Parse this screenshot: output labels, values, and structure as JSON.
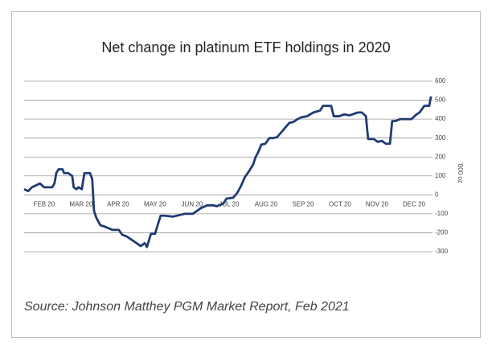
{
  "chart_data": {
    "type": "line",
    "title": "Net change in platinum ETF holdings in 2020",
    "y_axis_label": "'000 oz",
    "source": "Source: Johnson Matthey PGM Market Report, Feb 2021",
    "xlim": [
      1.46,
      12.5
    ],
    "xticks": [
      {
        "value": 2,
        "label": "FEB 20"
      },
      {
        "value": 3,
        "label": "MAR 20"
      },
      {
        "value": 4,
        "label": "APR 20"
      },
      {
        "value": 5,
        "label": "MAY 20"
      },
      {
        "value": 6,
        "label": "JUN 20"
      },
      {
        "value": 7,
        "label": "JUL 20"
      },
      {
        "value": 8,
        "label": "AUG 20"
      },
      {
        "value": 9,
        "label": "SEP 20"
      },
      {
        "value": 10,
        "label": "OCT 20"
      },
      {
        "value": 11,
        "label": "NOV 20"
      },
      {
        "value": 12,
        "label": "DEC 20"
      }
    ],
    "ylim": [
      -300,
      600
    ],
    "yticks": [
      -300,
      -200,
      -100,
      0,
      100,
      200,
      300,
      400,
      500,
      600
    ],
    "grid": true,
    "color": "#1f3b72",
    "x": [
      1.46,
      1.57,
      1.67,
      1.78,
      1.89,
      2.0,
      2.11,
      2.22,
      2.28,
      2.33,
      2.39,
      2.5,
      2.54,
      2.65,
      2.76,
      2.8,
      2.87,
      2.93,
      3.02,
      3.09,
      3.24,
      3.3,
      3.35,
      3.41,
      3.52,
      3.67,
      3.85,
      4.02,
      4.11,
      4.24,
      4.39,
      4.5,
      4.61,
      4.72,
      4.78,
      4.89,
      5.0,
      5.07,
      5.15,
      5.26,
      5.48,
      5.7,
      5.8,
      6.02,
      6.24,
      6.41,
      6.57,
      6.67,
      6.85,
      6.93,
      7.11,
      7.22,
      7.33,
      7.43,
      7.54,
      7.65,
      7.72,
      7.8,
      7.87,
      7.98,
      8.09,
      8.2,
      8.3,
      8.41,
      8.52,
      8.63,
      8.74,
      8.85,
      8.96,
      9.11,
      9.28,
      9.46,
      9.54,
      9.76,
      9.83,
      9.98,
      10.11,
      10.26,
      10.48,
      10.59,
      10.7,
      10.76,
      10.91,
      11.02,
      11.13,
      11.24,
      11.35,
      11.41,
      11.5,
      11.63,
      11.78,
      11.93,
      12.07,
      12.15,
      12.28,
      12.41,
      12.46
    ],
    "values": [
      30,
      20,
      40,
      50,
      60,
      40,
      40,
      40,
      60,
      115,
      135,
      135,
      115,
      115,
      100,
      40,
      30,
      40,
      30,
      115,
      115,
      85,
      -85,
      -120,
      -160,
      -170,
      -185,
      -185,
      -210,
      -220,
      -240,
      -255,
      -270,
      -255,
      -275,
      -205,
      -205,
      -160,
      -110,
      -110,
      -115,
      -105,
      -100,
      -100,
      -70,
      -55,
      -55,
      -60,
      -45,
      -20,
      -15,
      10,
      50,
      95,
      125,
      160,
      200,
      230,
      265,
      270,
      300,
      300,
      305,
      330,
      355,
      380,
      385,
      400,
      410,
      415,
      435,
      445,
      470,
      470,
      415,
      415,
      425,
      420,
      435,
      435,
      415,
      295,
      295,
      280,
      285,
      270,
      270,
      390,
      390,
      400,
      400,
      400,
      425,
      435,
      470,
      470,
      520
    ]
  }
}
